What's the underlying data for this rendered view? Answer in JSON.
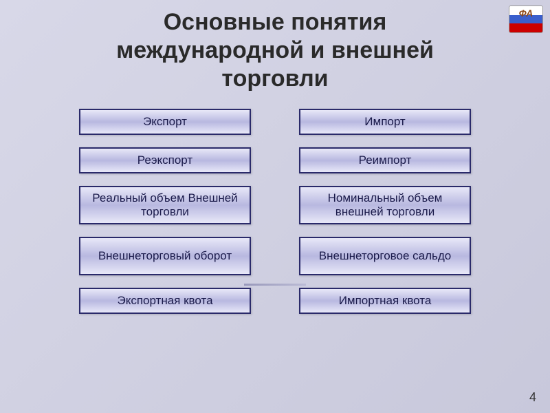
{
  "title_line1": "Основные понятия",
  "title_line2": "международной и внешней",
  "title_line3": "торговли",
  "logo_text": "ФА",
  "left_column": [
    {
      "label": "Экспорт",
      "height": "h1"
    },
    {
      "label": "Реэкспорт",
      "height": "h1"
    },
    {
      "label": "Реальный объем Внешней торговли",
      "height": "h2"
    },
    {
      "label": "Внешнеторговый оборот",
      "height": "h2"
    },
    {
      "label": "Экспортная квота",
      "height": "h1"
    }
  ],
  "right_column": [
    {
      "label": "Импорт",
      "height": "h1"
    },
    {
      "label": "Реимпорт",
      "height": "h1"
    },
    {
      "label": "Номинальный объем внешней торговли",
      "height": "h2"
    },
    {
      "label": "Внешнеторговое сальдо",
      "height": "h2"
    },
    {
      "label": "Импортная квота",
      "height": "h1"
    }
  ],
  "page_number": "4",
  "colors": {
    "background_start": "#d8d8e8",
    "background_end": "#c8c8db",
    "box_gradient_light": "#e8e8f8",
    "box_gradient_mid": "#b8b8e0",
    "box_border": "#2a2a6a",
    "text": "#1a1a4a",
    "title_text": "#2a2a2a"
  }
}
